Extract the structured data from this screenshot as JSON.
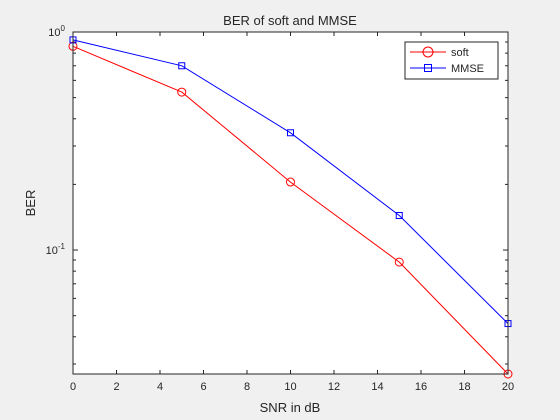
{
  "chart_data": {
    "type": "line",
    "title": "BER of soft and MMSE",
    "xlabel": "SNR in dB",
    "ylabel": "BER",
    "xlim": [
      0,
      20
    ],
    "ylim": [
      0.027,
      1
    ],
    "yscale": "log",
    "grid": false,
    "legend_position": "top-right",
    "x": [
      0,
      5,
      10,
      15,
      20
    ],
    "xticks": [
      0,
      2,
      4,
      6,
      8,
      10,
      12,
      14,
      16,
      18,
      20
    ],
    "xtick_labels": [
      "0",
      "2",
      "4",
      "6",
      "8",
      "10",
      "12",
      "14",
      "16",
      "18",
      "20"
    ],
    "yticks": [
      {
        "value": 1,
        "base": "10",
        "exp": "0"
      },
      {
        "value": 0.1,
        "base": "10",
        "exp": "-1"
      }
    ],
    "series": [
      {
        "name": "soft",
        "color": "#ff0000",
        "marker": "circle",
        "values": [
          0.86,
          0.53,
          0.205,
          0.088,
          0.027
        ]
      },
      {
        "name": "MMSE",
        "color": "#0000ff",
        "marker": "square",
        "values": [
          0.92,
          0.7,
          0.345,
          0.144,
          0.046
        ]
      }
    ]
  }
}
